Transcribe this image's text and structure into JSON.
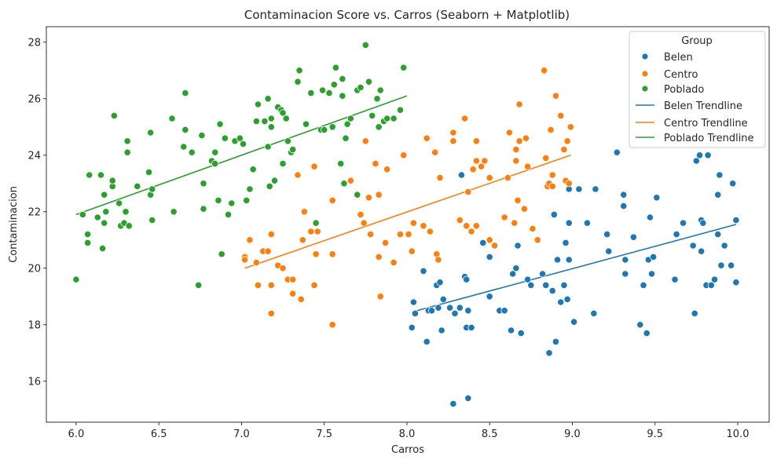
{
  "chart_data": {
    "type": "scatter",
    "title": "Contaminacion Score vs. Carros (Seaborn + Matplotlib)",
    "xlabel": "Carros",
    "ylabel": "Contaminacion",
    "xlim": [
      5.82,
      10.19
    ],
    "ylim": [
      14.55,
      28.55
    ],
    "xticks": [
      "6.0",
      "6.5",
      "7.0",
      "7.5",
      "8.0",
      "8.5",
      "9.0",
      "9.5",
      "10.0"
    ],
    "yticks": [
      "16",
      "18",
      "20",
      "22",
      "24",
      "26",
      "28"
    ],
    "grid": false,
    "legend": {
      "title": "Group",
      "position": "upper right",
      "entries": [
        "Belen",
        "Centro",
        "Poblado",
        "Belen Trendline",
        "Centro Trendline",
        "Poblado Trendline"
      ]
    },
    "series": [
      {
        "name": "Belen",
        "color": "#1f77b4",
        "points": [
          [
            8.05,
            18.4
          ],
          [
            8.03,
            17.9
          ],
          [
            8.04,
            18.8
          ],
          [
            8.1,
            19.9
          ],
          [
            8.12,
            17.4
          ],
          [
            8.13,
            18.5
          ],
          [
            8.15,
            18.5
          ],
          [
            8.18,
            19.4
          ],
          [
            8.19,
            18.6
          ],
          [
            8.2,
            19.5
          ],
          [
            8.21,
            17.8
          ],
          [
            8.22,
            18.9
          ],
          [
            8.26,
            18.6
          ],
          [
            8.28,
            15.2
          ],
          [
            8.29,
            18.4
          ],
          [
            8.32,
            18.6
          ],
          [
            8.33,
            23.3
          ],
          [
            8.35,
            19.7
          ],
          [
            8.36,
            17.9
          ],
          [
            8.36,
            19.6
          ],
          [
            8.37,
            18.5
          ],
          [
            8.37,
            15.4
          ],
          [
            8.39,
            17.9
          ],
          [
            8.46,
            20.9
          ],
          [
            8.5,
            20.4
          ],
          [
            8.5,
            19.0
          ],
          [
            8.56,
            18.5
          ],
          [
            8.59,
            18.5
          ],
          [
            8.63,
            17.8
          ],
          [
            8.64,
            19.8
          ],
          [
            8.66,
            20.0
          ],
          [
            8.67,
            20.8
          ],
          [
            8.69,
            17.7
          ],
          [
            8.73,
            19.6
          ],
          [
            8.75,
            19.4
          ],
          [
            8.82,
            19.8
          ],
          [
            8.84,
            19.4
          ],
          [
            8.86,
            17.0
          ],
          [
            8.88,
            19.2
          ],
          [
            8.89,
            21.9
          ],
          [
            8.9,
            17.4
          ],
          [
            8.91,
            20.3
          ],
          [
            8.93,
            18.8
          ],
          [
            8.95,
            19.4
          ],
          [
            8.96,
            20.9
          ],
          [
            8.97,
            18.9
          ],
          [
            8.98,
            20.3
          ],
          [
            8.98,
            21.6
          ],
          [
            8.98,
            22.8
          ],
          [
            9.01,
            18.1
          ],
          [
            9.04,
            22.8
          ],
          [
            9.09,
            21.6
          ],
          [
            9.13,
            18.4
          ],
          [
            9.14,
            22.8
          ],
          [
            9.21,
            21.2
          ],
          [
            9.22,
            20.6
          ],
          [
            9.27,
            24.1
          ],
          [
            9.31,
            22.6
          ],
          [
            9.31,
            22.2
          ],
          [
            9.32,
            20.3
          ],
          [
            9.32,
            19.8
          ],
          [
            9.37,
            21.1
          ],
          [
            9.41,
            18.0
          ],
          [
            9.43,
            19.4
          ],
          [
            9.45,
            17.7
          ],
          [
            9.46,
            20.3
          ],
          [
            9.47,
            21.8
          ],
          [
            9.48,
            19.8
          ],
          [
            9.49,
            20.4
          ],
          [
            9.51,
            22.5
          ],
          [
            9.62,
            19.6
          ],
          [
            9.63,
            21.2
          ],
          [
            9.67,
            21.6
          ],
          [
            9.73,
            20.8
          ],
          [
            9.74,
            18.4
          ],
          [
            9.75,
            23.8
          ],
          [
            9.77,
            24.0
          ],
          [
            9.78,
            21.7
          ],
          [
            9.78,
            20.6
          ],
          [
            9.79,
            21.6
          ],
          [
            9.81,
            19.4
          ],
          [
            9.82,
            24.0
          ],
          [
            9.84,
            19.4
          ],
          [
            9.86,
            19.6
          ],
          [
            9.88,
            21.2
          ],
          [
            9.88,
            22.6
          ],
          [
            9.89,
            23.3
          ],
          [
            9.9,
            20.1
          ],
          [
            9.92,
            20.8
          ],
          [
            9.96,
            20.1
          ],
          [
            9.97,
            23.0
          ],
          [
            9.99,
            21.7
          ],
          [
            9.99,
            19.5
          ]
        ],
        "trendline": [
          [
            8.03,
            18.45
          ],
          [
            9.99,
            21.55
          ]
        ]
      },
      {
        "name": "Centro",
        "color": "#ff7f0e",
        "points": [
          [
            7.02,
            20.4
          ],
          [
            7.02,
            20.3
          ],
          [
            7.05,
            21.0
          ],
          [
            7.09,
            20.2
          ],
          [
            7.1,
            19.4
          ],
          [
            7.13,
            20.6
          ],
          [
            7.16,
            20.6
          ],
          [
            7.18,
            21.2
          ],
          [
            7.18,
            18.4
          ],
          [
            7.18,
            19.4
          ],
          [
            7.22,
            20.1
          ],
          [
            7.25,
            20.0
          ],
          [
            7.28,
            19.6
          ],
          [
            7.31,
            19.6
          ],
          [
            7.31,
            19.1
          ],
          [
            7.34,
            23.3
          ],
          [
            7.36,
            18.9
          ],
          [
            7.37,
            21.0
          ],
          [
            7.38,
            22.0
          ],
          [
            7.42,
            21.3
          ],
          [
            7.44,
            23.6
          ],
          [
            7.44,
            19.4
          ],
          [
            7.45,
            20.5
          ],
          [
            7.46,
            21.3
          ],
          [
            7.55,
            18.0
          ],
          [
            7.55,
            20.5
          ],
          [
            7.55,
            22.4
          ],
          [
            7.66,
            23.1
          ],
          [
            7.72,
            21.9
          ],
          [
            7.74,
            21.6
          ],
          [
            7.75,
            24.5
          ],
          [
            7.77,
            22.5
          ],
          [
            7.78,
            21.2
          ],
          [
            7.81,
            23.7
          ],
          [
            7.83,
            22.6
          ],
          [
            7.83,
            20.4
          ],
          [
            7.84,
            19.0
          ],
          [
            7.87,
            20.9
          ],
          [
            7.88,
            23.5
          ],
          [
            7.92,
            20.2
          ],
          [
            7.96,
            21.2
          ],
          [
            7.98,
            24.0
          ],
          [
            8.01,
            21.2
          ],
          [
            8.03,
            20.6
          ],
          [
            8.04,
            21.6
          ],
          [
            8.1,
            21.5
          ],
          [
            8.12,
            24.6
          ],
          [
            8.14,
            21.3
          ],
          [
            8.17,
            24.1
          ],
          [
            8.18,
            20.5
          ],
          [
            8.19,
            20.3
          ],
          [
            8.2,
            23.2
          ],
          [
            8.28,
            24.5
          ],
          [
            8.28,
            24.8
          ],
          [
            8.32,
            21.7
          ],
          [
            8.35,
            25.3
          ],
          [
            8.36,
            21.5
          ],
          [
            8.37,
            22.7
          ],
          [
            8.39,
            21.3
          ],
          [
            8.4,
            23.5
          ],
          [
            8.42,
            21.5
          ],
          [
            8.42,
            24.5
          ],
          [
            8.42,
            23.8
          ],
          [
            8.45,
            23.6
          ],
          [
            8.47,
            23.8
          ],
          [
            8.5,
            21.0
          ],
          [
            8.5,
            23.2
          ],
          [
            8.53,
            20.8
          ],
          [
            8.59,
            21.8
          ],
          [
            8.61,
            23.2
          ],
          [
            8.62,
            24.8
          ],
          [
            8.65,
            21.6
          ],
          [
            8.66,
            23.8
          ],
          [
            8.66,
            24.2
          ],
          [
            8.67,
            22.4
          ],
          [
            8.68,
            25.8
          ],
          [
            8.68,
            24.5
          ],
          [
            8.71,
            22.1
          ],
          [
            8.72,
            24.6
          ],
          [
            8.73,
            23.6
          ],
          [
            8.76,
            21.4
          ],
          [
            8.79,
            21.0
          ],
          [
            8.83,
            27.0
          ],
          [
            8.84,
            23.9
          ],
          [
            8.85,
            22.9
          ],
          [
            8.86,
            23.0
          ],
          [
            8.87,
            24.9
          ],
          [
            8.88,
            23.3
          ],
          [
            8.88,
            22.9
          ],
          [
            8.9,
            26.1
          ],
          [
            8.93,
            25.4
          ],
          [
            8.95,
            24.2
          ],
          [
            8.96,
            23.1
          ],
          [
            8.97,
            24.5
          ],
          [
            8.99,
            25.0
          ],
          [
            8.98,
            23.0
          ]
        ],
        "trendline": [
          [
            7.02,
            20.0
          ],
          [
            8.99,
            24.0
          ]
        ]
      },
      {
        "name": "Poblado",
        "color": "#2ca02c",
        "points": [
          [
            6.0,
            19.6
          ],
          [
            6.04,
            21.9
          ],
          [
            6.07,
            21.2
          ],
          [
            6.07,
            20.9
          ],
          [
            6.08,
            23.3
          ],
          [
            6.13,
            21.8
          ],
          [
            6.15,
            23.3
          ],
          [
            6.16,
            20.7
          ],
          [
            6.17,
            22.6
          ],
          [
            6.17,
            21.6
          ],
          [
            6.18,
            22.0
          ],
          [
            6.22,
            22.9
          ],
          [
            6.22,
            23.1
          ],
          [
            6.23,
            25.4
          ],
          [
            6.26,
            22.3
          ],
          [
            6.27,
            21.5
          ],
          [
            6.29,
            21.6
          ],
          [
            6.3,
            22.0
          ],
          [
            6.31,
            24.5
          ],
          [
            6.31,
            24.1
          ],
          [
            6.32,
            21.5
          ],
          [
            6.37,
            22.9
          ],
          [
            6.44,
            23.4
          ],
          [
            6.45,
            24.8
          ],
          [
            6.45,
            22.6
          ],
          [
            6.46,
            22.8
          ],
          [
            6.46,
            21.7
          ],
          [
            6.58,
            25.3
          ],
          [
            6.59,
            22.0
          ],
          [
            6.65,
            24.3
          ],
          [
            6.66,
            24.9
          ],
          [
            6.66,
            26.2
          ],
          [
            6.7,
            24.1
          ],
          [
            6.74,
            19.4
          ],
          [
            6.76,
            24.7
          ],
          [
            6.77,
            22.1
          ],
          [
            6.77,
            23.0
          ],
          [
            6.82,
            23.8
          ],
          [
            6.84,
            23.7
          ],
          [
            6.84,
            24.1
          ],
          [
            6.86,
            22.4
          ],
          [
            6.87,
            25.1
          ],
          [
            6.88,
            20.5
          ],
          [
            6.9,
            24.6
          ],
          [
            6.92,
            21.9
          ],
          [
            6.94,
            22.3
          ],
          [
            6.96,
            24.5
          ],
          [
            6.99,
            24.6
          ],
          [
            7.01,
            24.4
          ],
          [
            7.03,
            22.4
          ],
          [
            7.05,
            22.8
          ],
          [
            7.07,
            23.5
          ],
          [
            7.09,
            25.2
          ],
          [
            7.1,
            25.8
          ],
          [
            7.14,
            25.2
          ],
          [
            7.16,
            24.3
          ],
          [
            7.16,
            26.0
          ],
          [
            7.17,
            22.9
          ],
          [
            7.18,
            25.0
          ],
          [
            7.18,
            25.3
          ],
          [
            7.2,
            23.1
          ],
          [
            7.22,
            25.7
          ],
          [
            7.24,
            25.6
          ],
          [
            7.25,
            25.5
          ],
          [
            7.25,
            23.7
          ],
          [
            7.27,
            25.3
          ],
          [
            7.28,
            24.5
          ],
          [
            7.3,
            24.1
          ],
          [
            7.31,
            24.2
          ],
          [
            7.34,
            26.6
          ],
          [
            7.35,
            27.0
          ],
          [
            7.39,
            25.1
          ],
          [
            7.42,
            26.2
          ],
          [
            7.45,
            21.6
          ],
          [
            7.48,
            24.9
          ],
          [
            7.49,
            26.3
          ],
          [
            7.5,
            24.9
          ],
          [
            7.53,
            26.2
          ],
          [
            7.55,
            25.0
          ],
          [
            7.56,
            26.5
          ],
          [
            7.57,
            27.1
          ],
          [
            7.6,
            23.7
          ],
          [
            7.61,
            26.7
          ],
          [
            7.61,
            26.1
          ],
          [
            7.62,
            23.0
          ],
          [
            7.63,
            24.6
          ],
          [
            7.64,
            25.1
          ],
          [
            7.66,
            25.3
          ],
          [
            7.7,
            22.6
          ],
          [
            7.7,
            26.3
          ],
          [
            7.72,
            26.4
          ],
          [
            7.75,
            27.9
          ],
          [
            7.77,
            26.6
          ],
          [
            7.79,
            25.4
          ],
          [
            7.82,
            26.0
          ],
          [
            7.83,
            25.0
          ],
          [
            7.84,
            26.3
          ],
          [
            7.86,
            25.2
          ],
          [
            7.88,
            25.3
          ],
          [
            7.92,
            25.3
          ],
          [
            7.98,
            27.1
          ],
          [
            7.96,
            25.6
          ]
        ],
        "trendline": [
          [
            6.0,
            21.9
          ],
          [
            8.0,
            26.1
          ]
        ]
      }
    ]
  }
}
